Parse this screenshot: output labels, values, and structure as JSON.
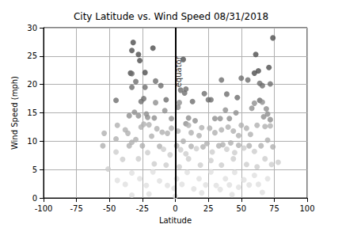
{
  "chart_data": {
    "type": "scatter",
    "title": "City Latitude vs. Wind Speed 08/31/2018",
    "x_label": "Latitude",
    "y_label": "Wind Speed (mph)",
    "xlim": [
      -100,
      100
    ],
    "xticks": [
      -100,
      -75,
      -50,
      -25,
      0,
      25,
      50,
      75,
      100
    ],
    "ylim": [
      0,
      30
    ],
    "yticks": [
      0,
      5,
      10,
      15,
      20,
      25,
      30
    ],
    "grid": true,
    "marker": "circle",
    "annotations": [
      {
        "text": "equator",
        "x": 0,
        "y": 19.5
      }
    ],
    "x": [
      -33,
      -32,
      -28,
      -27,
      -17,
      -23,
      -34,
      -33,
      -30,
      -23,
      -15,
      -11,
      -45,
      -33,
      -26,
      -24,
      -15,
      -7,
      -8,
      -31,
      -35,
      -28,
      -22,
      -21,
      -16,
      -3,
      6,
      4,
      7,
      8,
      2,
      3,
      13,
      22,
      25,
      27,
      39,
      35,
      47,
      46,
      50,
      55,
      61,
      60,
      63,
      64,
      66,
      71,
      72,
      74,
      60,
      64,
      66,
      69,
      70,
      72,
      67,
      58,
      38,
      41,
      30,
      34,
      10,
      15,
      8,
      -44,
      -38,
      -36,
      -26,
      -24,
      -20,
      -14,
      -10,
      -6,
      -54,
      -45,
      -30,
      -18,
      -3,
      2,
      6,
      10,
      12,
      18,
      20,
      26,
      30,
      35,
      40,
      44,
      50,
      54,
      57,
      62,
      68,
      72,
      48,
      -55,
      -45,
      -35,
      -33,
      -25,
      -21,
      -12,
      -9,
      -4,
      1,
      4,
      8,
      12,
      16,
      21,
      24,
      28,
      33,
      36,
      39,
      42,
      45,
      48,
      52,
      56,
      60,
      65,
      70,
      74,
      78,
      -40,
      -28,
      -16,
      -7,
      3,
      10,
      19,
      27,
      35,
      44,
      54,
      62,
      68,
      73,
      -51,
      -44,
      -38,
      -33,
      -27,
      -22,
      -17,
      -12,
      -6,
      -1,
      1,
      5,
      9,
      14,
      18,
      23,
      27,
      31,
      34,
      38,
      41,
      45,
      48,
      52,
      56,
      60,
      63,
      66,
      70,
      -33,
      -20,
      0,
      20,
      43
    ],
    "values": [
      26.0,
      27.4,
      25.3,
      24.2,
      26.4,
      22.1,
      22.0,
      21.9,
      20.5,
      19.5,
      20.6,
      19.8,
      17.2,
      19.5,
      17.0,
      17.5,
      16.8,
      17.3,
      15.4,
      15.1,
      14.5,
      14.5,
      14.8,
      14.2,
      14.1,
      14.0,
      24.4,
      19.0,
      18.5,
      19.2,
      16.0,
      16.8,
      17.0,
      18.4,
      17.3,
      17.3,
      18.3,
      20.8,
      17.7,
      15.0,
      21.1,
      20.8,
      25.3,
      22.0,
      22.4,
      20.2,
      19.8,
      23.0,
      20.1,
      28.2,
      16.7,
      17.2,
      16.9,
      15.7,
      14.8,
      13.8,
      14.3,
      15.8,
      15.5,
      14.0,
      14.0,
      14.0,
      14.1,
      13.6,
      13.1,
      12.8,
      12.0,
      11.4,
      12.5,
      13.0,
      12.9,
      12.2,
      11.6,
      11.4,
      11.4,
      10.4,
      10.3,
      10.9,
      12.3,
      11.8,
      10.0,
      12.8,
      11.5,
      11.0,
      12.4,
      12.3,
      11.5,
      12.0,
      12.5,
      11.8,
      12.8,
      12.3,
      11.2,
      12.8,
      12.6,
      12.7,
      11.0,
      9.2,
      8.1,
      9.2,
      9.8,
      9.2,
      8.0,
      9.1,
      8.6,
      7.6,
      9.2,
      8.5,
      7.8,
      9.1,
      8.7,
      9.0,
      9.6,
      8.1,
      9.2,
      9.4,
      8.6,
      9.7,
      8.0,
      9.3,
      8.8,
      9.2,
      8.2,
      9.2,
      10.2,
      9.0,
      6.3,
      6.8,
      6.9,
      6.0,
      5.8,
      5.5,
      6.9,
      5.8,
      6.6,
      5.8,
      6.9,
      5.9,
      5.5,
      6.9,
      5.9,
      5.1,
      3.1,
      2.4,
      4.4,
      3.4,
      2.2,
      4.6,
      3.0,
      2.2,
      1.7,
      3.4,
      2.4,
      4.5,
      1.6,
      3.4,
      2.3,
      4.6,
      2.2,
      1.5,
      3.4,
      2.3,
      4.5,
      1.9,
      3.2,
      2.3,
      4.0,
      2.4,
      1.0,
      3.4,
      0.5,
      0.7,
      0.3,
      0.9,
      0.6
    ],
    "colors": [
      "#4d4d4d",
      "#4d4d4d",
      "#4d4d4d",
      "#4d4d4d",
      "#4d4d4d",
      "#4d4d4d",
      "#4d4d4d",
      "#6e6e6e",
      "#6e6e6e",
      "#6e6e6e",
      "#6e6e6e",
      "#6e6e6e",
      "#6e6e6e",
      "#6e6e6e",
      "#6e6e6e",
      "#6e6e6e",
      "#8f8f8f",
      "#6e6e6e",
      "#8f8f8f",
      "#8f8f8f",
      "#8f8f8f",
      "#8f8f8f",
      "#8f8f8f",
      "#8f8f8f",
      "#8f8f8f",
      "#8f8f8f",
      "#4d4d4d",
      "#6e6e6e",
      "#6e6e6e",
      "#6e6e6e",
      "#8f8f8f",
      "#8f8f8f",
      "#6e6e6e",
      "#6e6e6e",
      "#6e6e6e",
      "#6e6e6e",
      "#6e6e6e",
      "#6e6e6e",
      "#6e6e6e",
      "#8f8f8f",
      "#6e6e6e",
      "#6e6e6e",
      "#4d4d4d",
      "#4d4d4d",
      "#4d4d4d",
      "#6e6e6e",
      "#6e6e6e",
      "#4d4d4d",
      "#6e6e6e",
      "#4d4d4d",
      "#8f8f8f",
      "#6e6e6e",
      "#8f8f8f",
      "#8f8f8f",
      "#8f8f8f",
      "#8f8f8f",
      "#8f8f8f",
      "#8f8f8f",
      "#8f8f8f",
      "#8f8f8f",
      "#8f8f8f",
      "#8f8f8f",
      "#8f8f8f",
      "#8f8f8f",
      "#8f8f8f",
      "#b0b0b0",
      "#b0b0b0",
      "#b0b0b0",
      "#b0b0b0",
      "#b0b0b0",
      "#b0b0b0",
      "#b0b0b0",
      "#b0b0b0",
      "#b0b0b0",
      "#b0b0b0",
      "#b0b0b0",
      "#b0b0b0",
      "#b0b0b0",
      "#b0b0b0",
      "#b0b0b0",
      "#b0b0b0",
      "#b0b0b0",
      "#b0b0b0",
      "#b0b0b0",
      "#b0b0b0",
      "#b0b0b0",
      "#b0b0b0",
      "#b0b0b0",
      "#b0b0b0",
      "#b0b0b0",
      "#b0b0b0",
      "#b0b0b0",
      "#b0b0b0",
      "#b0b0b0",
      "#b0b0b0",
      "#b0b0b0",
      "#b0b0b0",
      "#b0b0b0",
      "#cdcdcd",
      "#b0b0b0",
      "#b0b0b0",
      "#b0b0b0",
      "#cdcdcd",
      "#b0b0b0",
      "#cdcdcd",
      "#cdcdcd",
      "#b0b0b0",
      "#cdcdcd",
      "#cdcdcd",
      "#b0b0b0",
      "#cdcdcd",
      "#b0b0b0",
      "#b0b0b0",
      "#cdcdcd",
      "#b0b0b0",
      "#b0b0b0",
      "#cdcdcd",
      "#b0b0b0",
      "#cdcdcd",
      "#b0b0b0",
      "#cdcdcd",
      "#b0b0b0",
      "#cdcdcd",
      "#b0b0b0",
      "#b0b0b0",
      "#b0b0b0",
      "#cdcdcd",
      "#cdcdcd",
      "#cdcdcd",
      "#cdcdcd",
      "#cdcdcd",
      "#cdcdcd",
      "#cdcdcd",
      "#cdcdcd",
      "#cdcdcd",
      "#cdcdcd",
      "#cdcdcd",
      "#cdcdcd",
      "#cdcdcd",
      "#cdcdcd",
      "#cdcdcd",
      "#cdcdcd",
      "#e0e0e0",
      "#e0e0e0",
      "#e0e0e0",
      "#e0e0e0",
      "#e0e0e0",
      "#e0e0e0",
      "#e0e0e0",
      "#e0e0e0",
      "#e0e0e0",
      "#e0e0e0",
      "#e0e0e0",
      "#e0e0e0",
      "#e0e0e0",
      "#e0e0e0",
      "#e0e0e0",
      "#e0e0e0",
      "#e0e0e0",
      "#e0e0e0",
      "#e0e0e0",
      "#e0e0e0",
      "#e0e0e0",
      "#e0e0e0",
      "#e0e0e0",
      "#e0e0e0",
      "#e0e0e0",
      "#e0e0e0",
      "#e0e0e0",
      "#e0e0e0",
      "#e0e0e0",
      "#e0e0e0",
      "#e0e0e0",
      "#e0e0e0",
      "#e0e0e0"
    ]
  }
}
